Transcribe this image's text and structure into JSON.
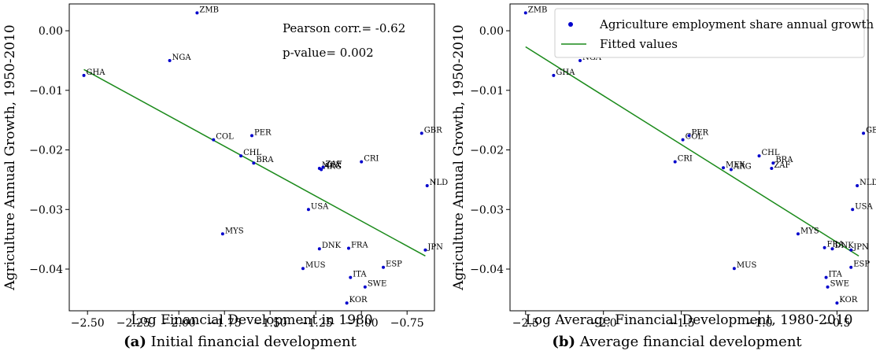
{
  "colors": {
    "points": "#0000cc",
    "fit": "#1a8a1a"
  },
  "chart_data": [
    {
      "type": "scatter",
      "xlabel": "Log Financial Development in 1980",
      "ylabel": "Agriculture Annual Growth, 1950-2010",
      "xlim": [
        -2.6,
        -0.6
      ],
      "ylim": [
        -0.047,
        0.0045
      ],
      "xticks": [
        -2.5,
        -2.25,
        -2.0,
        -1.75,
        -1.5,
        -1.25,
        -1.0,
        -0.75
      ],
      "xtick_labels": [
        "−2.50",
        "−2.25",
        "−2.00",
        "−1.75",
        "−1.50",
        "−1.25",
        "−1.00",
        "−0.75"
      ],
      "yticks": [
        0.0,
        -0.01,
        -0.02,
        -0.03,
        -0.04
      ],
      "ytick_labels": [
        "0.00",
        "−0.01",
        "−0.02",
        "−0.03",
        "−0.04"
      ],
      "annotations": [
        "Pearson corr.= -0.62",
        "p-value= 0.002"
      ],
      "fit": {
        "x": [
          -2.52,
          -0.65
        ],
        "y": [
          -0.0065,
          -0.0378
        ]
      },
      "points": [
        {
          "label": "ZMB",
          "x": -1.9,
          "y": 0.003
        },
        {
          "label": "NGA",
          "x": -2.05,
          "y": -0.005
        },
        {
          "label": "GHA",
          "x": -2.52,
          "y": -0.0075
        },
        {
          "label": "COL",
          "x": -1.81,
          "y": -0.0183
        },
        {
          "label": "PER",
          "x": -1.6,
          "y": -0.0176
        },
        {
          "label": "CHL",
          "x": -1.66,
          "y": -0.021
        },
        {
          "label": "BRA",
          "x": -1.59,
          "y": -0.0222
        },
        {
          "label": "MEX",
          "x": -1.23,
          "y": -0.0231
        },
        {
          "label": "ZAF",
          "x": -1.21,
          "y": -0.0229
        },
        {
          "label": "ARG",
          "x": -1.22,
          "y": -0.0233
        },
        {
          "label": "CRI",
          "x": -1.0,
          "y": -0.022
        },
        {
          "label": "GBR",
          "x": -0.67,
          "y": -0.0172
        },
        {
          "label": "NLD",
          "x": -0.64,
          "y": -0.026
        },
        {
          "label": "USA",
          "x": -1.29,
          "y": -0.03
        },
        {
          "label": "MYS",
          "x": -1.76,
          "y": -0.0341
        },
        {
          "label": "DNK",
          "x": -1.23,
          "y": -0.0366
        },
        {
          "label": "FRA",
          "x": -1.07,
          "y": -0.0365
        },
        {
          "label": "JPN",
          "x": -0.65,
          "y": -0.0368
        },
        {
          "label": "MUS",
          "x": -1.32,
          "y": -0.0399
        },
        {
          "label": "ESP",
          "x": -0.88,
          "y": -0.0397
        },
        {
          "label": "ITA",
          "x": -1.06,
          "y": -0.0414
        },
        {
          "label": "SWE",
          "x": -0.98,
          "y": -0.043
        },
        {
          "label": "KOR",
          "x": -1.08,
          "y": -0.0457
        }
      ]
    },
    {
      "type": "scatter",
      "xlabel": "Log Average Financial Development, 1980-2010",
      "ylabel": "Agriculture Annual Growth, 1950-2010",
      "xlim": [
        -2.6,
        -0.3
      ],
      "ylim": [
        -0.047,
        0.0045
      ],
      "xticks": [
        -2.5,
        -2.0,
        -1.5,
        -1.0,
        -0.5
      ],
      "xtick_labels": [
        "−2.5",
        "−2.0",
        "−1.5",
        "−1.0",
        "−0.5"
      ],
      "yticks": [
        0.0,
        -0.01,
        -0.02,
        -0.03,
        -0.04
      ],
      "ytick_labels": [
        "0.00",
        "−0.01",
        "−0.02",
        "−0.03",
        "−0.04"
      ],
      "legend": {
        "placement": "top-right",
        "entries": [
          "Agriculture employment share annual growth",
          "Fitted values"
        ]
      },
      "fit": {
        "x": [
          -2.5,
          -0.36
        ],
        "y": [
          -0.0027,
          -0.0378
        ]
      },
      "points": [
        {
          "label": "ZMB",
          "x": -2.5,
          "y": 0.003
        },
        {
          "label": "NGA",
          "x": -2.15,
          "y": -0.005
        },
        {
          "label": "GHA",
          "x": -2.32,
          "y": -0.0075
        },
        {
          "label": "PER",
          "x": -1.45,
          "y": -0.0176
        },
        {
          "label": "COL",
          "x": -1.49,
          "y": -0.0183
        },
        {
          "label": "GBR",
          "x": -0.33,
          "y": -0.0172
        },
        {
          "label": "CHL",
          "x": -1.0,
          "y": -0.021
        },
        {
          "label": "CRI",
          "x": -1.54,
          "y": -0.022
        },
        {
          "label": "BRA",
          "x": -0.91,
          "y": -0.0222
        },
        {
          "label": "ZAF",
          "x": -0.92,
          "y": -0.0231
        },
        {
          "label": "MEX",
          "x": -1.23,
          "y": -0.023
        },
        {
          "label": "ARG",
          "x": -1.18,
          "y": -0.0233
        },
        {
          "label": "NLD",
          "x": -0.37,
          "y": -0.026
        },
        {
          "label": "USA",
          "x": -0.4,
          "y": -0.03
        },
        {
          "label": "MYS",
          "x": -0.75,
          "y": -0.0341
        },
        {
          "label": "FRA",
          "x": -0.58,
          "y": -0.0364
        },
        {
          "label": "DNK",
          "x": -0.53,
          "y": -0.0366
        },
        {
          "label": "JPN",
          "x": -0.41,
          "y": -0.0368
        },
        {
          "label": "MUS",
          "x": -1.16,
          "y": -0.0399
        },
        {
          "label": "ESP",
          "x": -0.41,
          "y": -0.0397
        },
        {
          "label": "ITA",
          "x": -0.57,
          "y": -0.0414
        },
        {
          "label": "SWE",
          "x": -0.56,
          "y": -0.043
        },
        {
          "label": "KOR",
          "x": -0.5,
          "y": -0.0457
        }
      ]
    }
  ],
  "captions": [
    {
      "tag": "(a)",
      "text": " Initial financial development"
    },
    {
      "tag": "(b)",
      "text": " Average financial development"
    }
  ]
}
